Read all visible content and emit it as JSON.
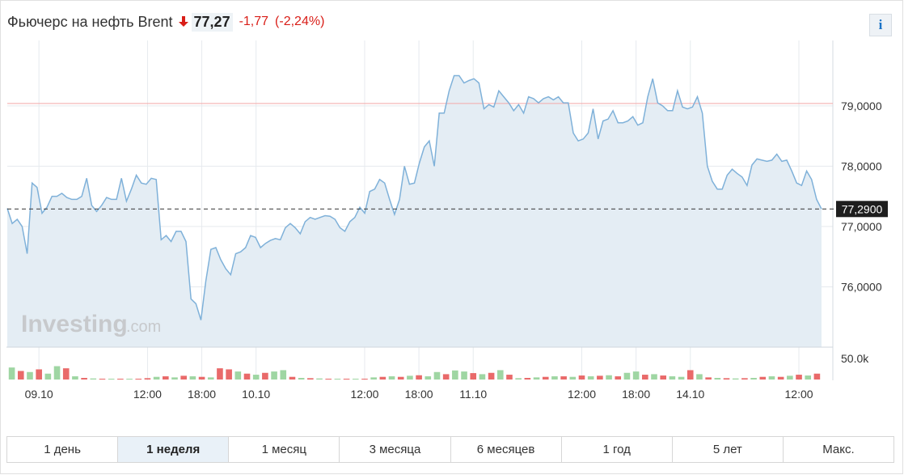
{
  "header": {
    "title": "Фьючерс на нефть Brent",
    "price": "77,27",
    "change": "-1,77",
    "change_pct": "(-2,24%)",
    "info_label": "i"
  },
  "colors": {
    "line": "#7fb1d9",
    "area": "#e4edf4",
    "down": "#d91e18",
    "vol_up": "#9fd6a3",
    "vol_down": "#e96a6a",
    "ref_line": "#f3a8a8",
    "current_label_bg": "#1e1e1e"
  },
  "watermark": {
    "brand": "Investing",
    "suffix": ".com"
  },
  "tabs": [
    "1 день",
    "1 неделя",
    "1 месяц",
    "3 месяца",
    "6 месяцев",
    "1 год",
    "5 лет",
    "Макс."
  ],
  "active_tab": "1 неделя",
  "chart_data": {
    "type": "area",
    "title": "Фьючерс на нефть Brent",
    "ylim": [
      75.0,
      79.95
    ],
    "yticks": [
      "79,0000",
      "78,0000",
      "77,0000",
      "76,0000"
    ],
    "ytick_values": [
      79.0,
      78.0,
      77.0,
      76.0
    ],
    "xticks": [
      "09.10",
      "12:00",
      "18:00",
      "10.10",
      "12:00",
      "18:00",
      "11.10",
      "12:00",
      "18:00",
      "14.10",
      "12:00"
    ],
    "xtick_positions": [
      3,
      15,
      21,
      27,
      39,
      45,
      51,
      63,
      69,
      75,
      87
    ],
    "x_count": 90,
    "current_value": 77.29,
    "current_label": "77,2900",
    "reference_value": 79.04,
    "volume_axis_label": "50.0k",
    "grid": true,
    "values": [
      77.3,
      77.05,
      77.12,
      77.0,
      76.55,
      77.72,
      77.65,
      77.22,
      77.32,
      77.5,
      77.5,
      77.55,
      77.48,
      77.45,
      77.45,
      77.5,
      77.8,
      77.35,
      77.25,
      77.35,
      77.48,
      77.45,
      77.45,
      77.8,
      77.42,
      77.62,
      77.85,
      77.72,
      77.7,
      77.8,
      77.78,
      76.78,
      76.85,
      76.75,
      76.92,
      76.92,
      76.75,
      75.8,
      75.72,
      75.45,
      76.1,
      76.62,
      76.65,
      76.45,
      76.3,
      76.2,
      76.55,
      76.58,
      76.65,
      76.85,
      76.82,
      76.65,
      76.72,
      76.77,
      76.8,
      76.78,
      76.98,
      77.05,
      76.98,
      76.88,
      77.08,
      77.15,
      77.12,
      77.15,
      77.18,
      77.17,
      77.12,
      76.98,
      76.92,
      77.08,
      77.15,
      77.32,
      77.22,
      77.58,
      77.62,
      77.78,
      77.72,
      77.45,
      77.2,
      77.45,
      78.0,
      77.7,
      77.72,
      78.05,
      78.32,
      78.42,
      78.0,
      78.88,
      78.88,
      79.25,
      79.5,
      79.5,
      79.38,
      79.42,
      79.45,
      79.38,
      78.95,
      79.02,
      78.98,
      79.25,
      79.15,
      79.05,
      78.92,
      79.02,
      78.88,
      79.15,
      79.12,
      79.05,
      79.12,
      79.15,
      79.1,
      79.15,
      79.05,
      79.05,
      78.55,
      78.42,
      78.45,
      78.55,
      78.95,
      78.45,
      78.75,
      78.78,
      78.92,
      78.72,
      78.72,
      78.75,
      78.82,
      78.68,
      78.72,
      79.15,
      79.45,
      79.05,
      79.0,
      78.92,
      78.92,
      79.25,
      78.98,
      78.95,
      78.98,
      79.15,
      78.88,
      78.0,
      77.75,
      77.62,
      77.62,
      77.85,
      77.95,
      77.88,
      77.82,
      77.68,
      78.02,
      78.12,
      78.1,
      78.08,
      78.1,
      78.2,
      78.08,
      78.1,
      77.92,
      77.72,
      77.68,
      77.92,
      77.78,
      77.45,
      77.29
    ],
    "volume": [
      {
        "v": 0.45,
        "up": true
      },
      {
        "v": 0.32,
        "up": false
      },
      {
        "v": 0.28,
        "up": true
      },
      {
        "v": 0.38,
        "up": false
      },
      {
        "v": 0.22,
        "up": true
      },
      {
        "v": 0.5,
        "up": true
      },
      {
        "v": 0.42,
        "up": false
      },
      {
        "v": 0.12,
        "up": true
      },
      {
        "v": 0.06,
        "up": false
      },
      {
        "v": 0.04,
        "up": true
      },
      {
        "v": 0.03,
        "up": false
      },
      {
        "v": 0.02,
        "up": true
      },
      {
        "v": 0.02,
        "up": false
      },
      {
        "v": 0.01,
        "up": true
      },
      {
        "v": 0.02,
        "up": false
      },
      {
        "v": 0.05,
        "up": false
      },
      {
        "v": 0.1,
        "up": true
      },
      {
        "v": 0.12,
        "up": false
      },
      {
        "v": 0.08,
        "up": true
      },
      {
        "v": 0.14,
        "up": false
      },
      {
        "v": 0.12,
        "up": true
      },
      {
        "v": 0.1,
        "up": false
      },
      {
        "v": 0.08,
        "up": true
      },
      {
        "v": 0.42,
        "up": false
      },
      {
        "v": 0.38,
        "up": false
      },
      {
        "v": 0.3,
        "up": true
      },
      {
        "v": 0.22,
        "up": false
      },
      {
        "v": 0.18,
        "up": true
      },
      {
        "v": 0.25,
        "up": false
      },
      {
        "v": 0.3,
        "up": true
      },
      {
        "v": 0.35,
        "up": true
      },
      {
        "v": 0.1,
        "up": false
      },
      {
        "v": 0.06,
        "up": true
      },
      {
        "v": 0.05,
        "up": false
      },
      {
        "v": 0.04,
        "up": true
      },
      {
        "v": 0.03,
        "up": false
      },
      {
        "v": 0.02,
        "up": true
      },
      {
        "v": 0.02,
        "up": false
      },
      {
        "v": 0.02,
        "up": true
      },
      {
        "v": 0.03,
        "up": false
      },
      {
        "v": 0.08,
        "up": true
      },
      {
        "v": 0.1,
        "up": false
      },
      {
        "v": 0.12,
        "up": true
      },
      {
        "v": 0.1,
        "up": false
      },
      {
        "v": 0.14,
        "up": true
      },
      {
        "v": 0.16,
        "up": false
      },
      {
        "v": 0.12,
        "up": true
      },
      {
        "v": 0.28,
        "up": true
      },
      {
        "v": 0.2,
        "up": false
      },
      {
        "v": 0.34,
        "up": true
      },
      {
        "v": 0.3,
        "up": true
      },
      {
        "v": 0.24,
        "up": false
      },
      {
        "v": 0.2,
        "up": true
      },
      {
        "v": 0.25,
        "up": false
      },
      {
        "v": 0.35,
        "up": true
      },
      {
        "v": 0.18,
        "up": false
      },
      {
        "v": 0.05,
        "up": true
      },
      {
        "v": 0.06,
        "up": false
      },
      {
        "v": 0.08,
        "up": true
      },
      {
        "v": 0.1,
        "up": false
      },
      {
        "v": 0.12,
        "up": true
      },
      {
        "v": 0.12,
        "up": false
      },
      {
        "v": 0.1,
        "up": true
      },
      {
        "v": 0.15,
        "up": false
      },
      {
        "v": 0.12,
        "up": true
      },
      {
        "v": 0.14,
        "up": false
      },
      {
        "v": 0.16,
        "up": true
      },
      {
        "v": 0.12,
        "up": false
      },
      {
        "v": 0.25,
        "up": true
      },
      {
        "v": 0.3,
        "up": true
      },
      {
        "v": 0.18,
        "up": false
      },
      {
        "v": 0.2,
        "up": true
      },
      {
        "v": 0.15,
        "up": false
      },
      {
        "v": 0.12,
        "up": true
      },
      {
        "v": 0.1,
        "up": true
      },
      {
        "v": 0.35,
        "up": false
      },
      {
        "v": 0.2,
        "up": true
      },
      {
        "v": 0.08,
        "up": false
      },
      {
        "v": 0.06,
        "up": true
      },
      {
        "v": 0.05,
        "up": false
      },
      {
        "v": 0.04,
        "up": true
      },
      {
        "v": 0.05,
        "up": false
      },
      {
        "v": 0.06,
        "up": true
      },
      {
        "v": 0.1,
        "up": false
      },
      {
        "v": 0.12,
        "up": true
      },
      {
        "v": 0.1,
        "up": false
      },
      {
        "v": 0.14,
        "up": true
      },
      {
        "v": 0.18,
        "up": false
      },
      {
        "v": 0.15,
        "up": true
      },
      {
        "v": 0.22,
        "up": false
      }
    ]
  }
}
